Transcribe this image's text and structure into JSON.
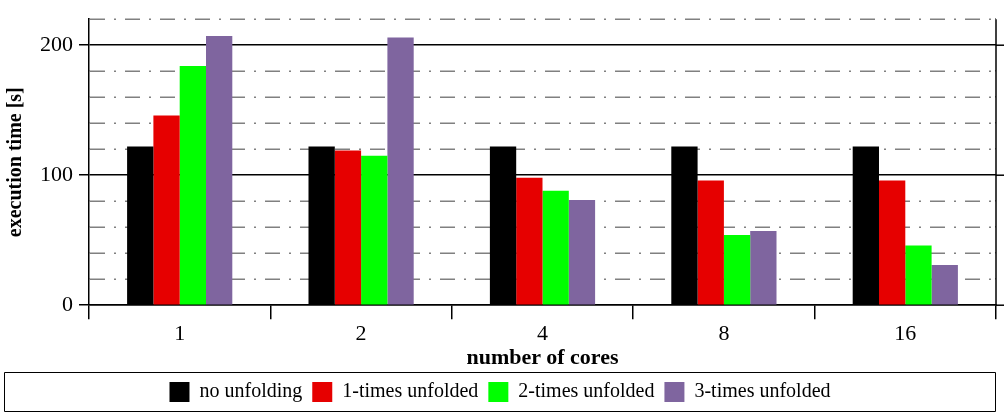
{
  "chart_data": {
    "type": "bar",
    "xlabel": "number of cores",
    "ylabel": "execution time [s]",
    "categories": [
      "1",
      "2",
      "4",
      "8",
      "16"
    ],
    "series": [
      {
        "name": "no unfolding",
        "color": "#000000",
        "values": [
          122,
          122,
          122,
          122,
          122
        ]
      },
      {
        "name": "1-times unfolded",
        "color": "#e60000",
        "values": [
          146,
          119,
          98,
          96,
          96
        ]
      },
      {
        "name": "2-times unfolded",
        "color": "#00ff00",
        "values": [
          184,
          115,
          88,
          54,
          46
        ]
      },
      {
        "name": "3-times unfolded",
        "color": "#7f659f",
        "values": [
          207,
          206,
          81,
          57,
          31
        ]
      }
    ],
    "ylim": [
      0,
      220
    ],
    "yticks": [
      0,
      {
        "value": 20,
        "label": null
      },
      {
        "value": 40,
        "label": null
      },
      {
        "value": 60,
        "label": null
      },
      {
        "value": 80,
        "label": null
      },
      100,
      {
        "value": 120,
        "label": null
      },
      {
        "value": 140,
        "label": null
      },
      {
        "value": 160,
        "label": null
      },
      {
        "value": 180,
        "label": null
      },
      200,
      {
        "value": 220,
        "label": null
      }
    ],
    "grid": "y",
    "legend": "bottom"
  }
}
